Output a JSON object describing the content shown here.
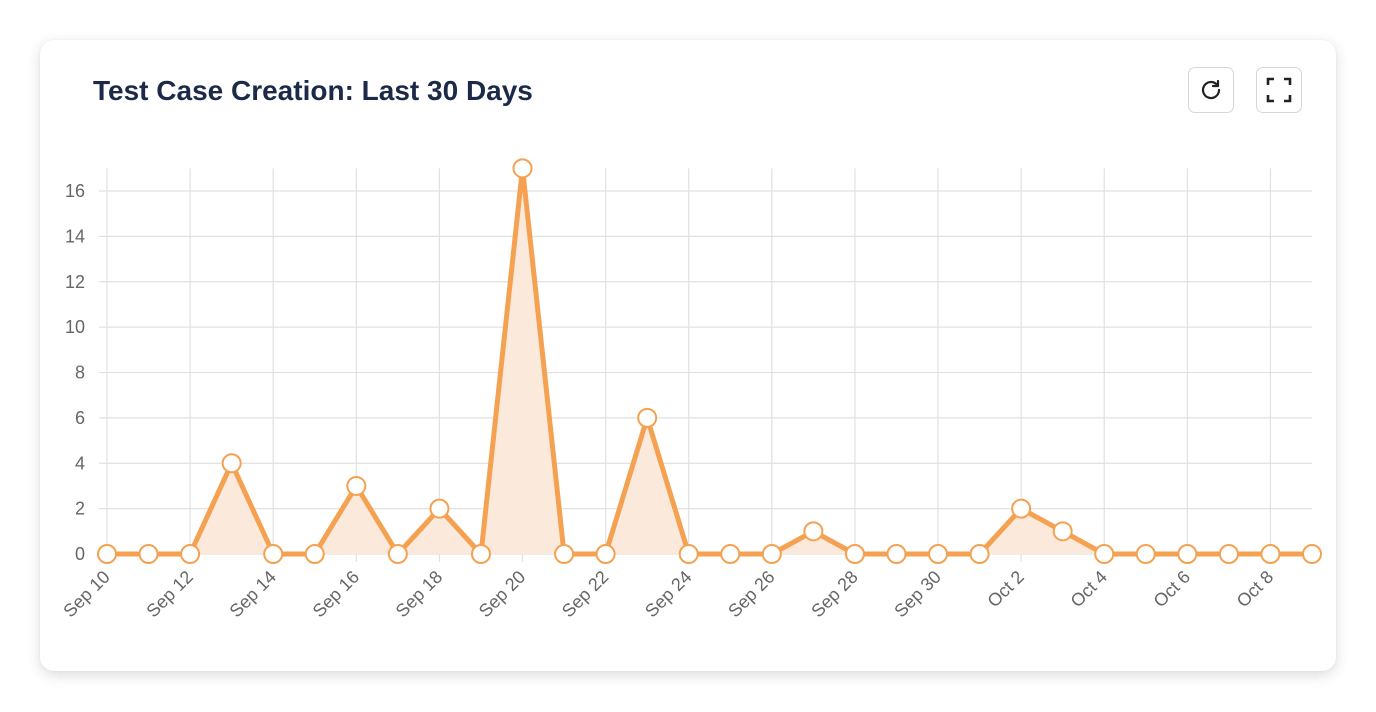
{
  "card": {
    "title": "Test Case Creation: Last 30 Days",
    "refresh_icon": "refresh-icon",
    "fullscreen_icon": "fullscreen-icon"
  },
  "chart_data": {
    "type": "line",
    "title": "Test Case Creation: Last 30 Days",
    "xlabel": "",
    "ylabel": "",
    "x": [
      "Sep 10",
      "Sep 11",
      "Sep 12",
      "Sep 13",
      "Sep 14",
      "Sep 15",
      "Sep 16",
      "Sep 17",
      "Sep 18",
      "Sep 19",
      "Sep 20",
      "Sep 21",
      "Sep 22",
      "Sep 23",
      "Sep 24",
      "Sep 25",
      "Sep 26",
      "Sep 27",
      "Sep 28",
      "Sep 29",
      "Sep 30",
      "Oct 1",
      "Oct 2",
      "Oct 3",
      "Oct 4",
      "Oct 5",
      "Oct 6",
      "Oct 7",
      "Oct 8",
      "Oct 9"
    ],
    "values": [
      0,
      0,
      0,
      4,
      0,
      0,
      3,
      0,
      2,
      0,
      17,
      0,
      0,
      6,
      0,
      0,
      0,
      1,
      0,
      0,
      0,
      0,
      2,
      1,
      0,
      0,
      0,
      0,
      0,
      0
    ],
    "x_tick_labels": [
      "Sep 10",
      "Sep 12",
      "Sep 14",
      "Sep 16",
      "Sep 18",
      "Sep 20",
      "Sep 22",
      "Sep 24",
      "Sep 26",
      "Sep 28",
      "Sep 30",
      "Oct 2",
      "Oct 4",
      "Oct 6",
      "Oct 8"
    ],
    "y_tick_labels": [
      "0",
      "2",
      "4",
      "6",
      "8",
      "10",
      "12",
      "14",
      "16"
    ],
    "ylim": [
      0,
      17
    ],
    "grid": true,
    "line_color": "#f4a251",
    "fill_color": "#fbeadb"
  }
}
